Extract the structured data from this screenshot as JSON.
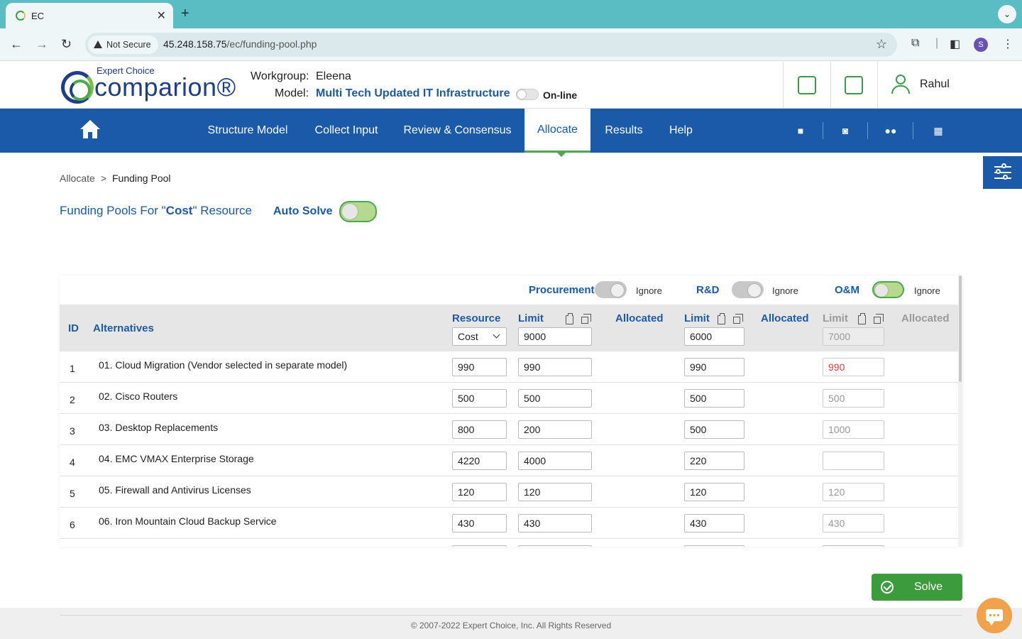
{
  "browser": {
    "tab_title": "EC",
    "not_secure": "Not Secure",
    "url_host": "45.248.158.75",
    "url_path": "/ec/funding-pool.php",
    "profile_initial": "S"
  },
  "header": {
    "logo_sub": "Expert Choice",
    "logo_main": "comparion®",
    "workgroup_label": "Workgroup:",
    "workgroup_value": "Eleena",
    "model_label": "Model:",
    "model_value": "Multi Tech Updated IT Infrastructure",
    "online_label": "On-line",
    "user_name": "Rahul"
  },
  "nav": {
    "items": [
      {
        "label": "Structure Model"
      },
      {
        "label": "Collect Input"
      },
      {
        "label": "Review & Consensus"
      },
      {
        "label": "Allocate"
      },
      {
        "label": "Results"
      },
      {
        "label": "Help"
      }
    ],
    "active": "Allocate"
  },
  "breadcrumb": {
    "parent": "Allocate",
    "separator": ">",
    "current": "Funding Pool"
  },
  "page": {
    "title_prefix": "Funding Pools For \"",
    "title_resource": "Cost",
    "title_suffix": "\" Resource",
    "auto_solve_label": "Auto Solve",
    "auto_solve_on": true
  },
  "pools": [
    {
      "name": "Procurement",
      "ignore_label": "Ignore",
      "ignore_on": false,
      "limit": "9000"
    },
    {
      "name": "R&D",
      "ignore_label": "Ignore",
      "ignore_on": false,
      "limit": "6000"
    },
    {
      "name": "O&M",
      "ignore_label": "Ignore",
      "ignore_on": true,
      "limit": "7000"
    }
  ],
  "table": {
    "col_id": "ID",
    "col_alternatives": "Alternatives",
    "col_resource": "Resource",
    "resource_select": "Cost",
    "col_limit": "Limit",
    "col_allocated": "Allocated",
    "rows": [
      {
        "id": "1",
        "name": "01. Cloud Migration (Vendor selected in separate model)",
        "resource": "990",
        "p1": "990",
        "p2": "990",
        "p3": "990"
      },
      {
        "id": "2",
        "name": "02. Cisco Routers",
        "resource": "500",
        "p1": "500",
        "p2": "500",
        "p3": "500"
      },
      {
        "id": "3",
        "name": "03. Desktop Replacements",
        "resource": "800",
        "p1": "200",
        "p2": "500",
        "p3": "1000"
      },
      {
        "id": "4",
        "name": "04. EMC VMAX Enterprise Storage",
        "resource": "4220",
        "p1": "4000",
        "p2": "220",
        "p3": ""
      },
      {
        "id": "5",
        "name": "05. Firewall and Antivirus Licenses",
        "resource": "120",
        "p1": "120",
        "p2": "120",
        "p3": "120"
      },
      {
        "id": "6",
        "name": "06. Iron Mountain Cloud Backup Service",
        "resource": "430",
        "p1": "430",
        "p2": "430",
        "p3": "430"
      }
    ]
  },
  "solve_label": "Solve",
  "footer_text": "© 2007-2022 Expert Choice, Inc. All Rights Reserved",
  "colors": {
    "brand_blue": "#1a5aa8",
    "accent_green": "#3c9b3a",
    "warning_red": "#e04040"
  }
}
